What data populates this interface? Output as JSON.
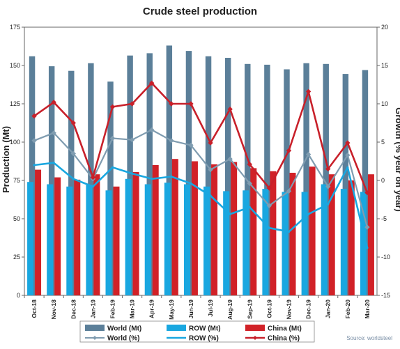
{
  "chart_data": {
    "type": "bar",
    "title": "Crude steel production",
    "ylabel_left": "Production (Mt)",
    "ylabel_right": "Growth (% year on year)",
    "ylim_left": [
      0,
      175
    ],
    "yticks_left": [
      "0",
      "25",
      "50",
      "75",
      "100",
      "125",
      "150",
      "175"
    ],
    "ylim_right": [
      -15,
      20
    ],
    "yticks_right": [
      "-15",
      "-10",
      "-5",
      "0",
      "5",
      "10",
      "15",
      "20"
    ],
    "categories": [
      "Oct-18",
      "Nov-18",
      "Dec-18",
      "Jan-19",
      "Feb-19",
      "Mar-19",
      "Apr-19",
      "May-19",
      "Jun-19",
      "Jul-19",
      "Aug-19",
      "Sep-19",
      "Oct-19",
      "Nov-19",
      "Dec-19",
      "Jan-20",
      "Feb-20",
      "Mar-20"
    ],
    "bar_series": [
      {
        "name": "World (Mt)",
        "color": "#5b7f99",
        "values": [
          156,
          149.5,
          146.5,
          151.5,
          139.5,
          156.5,
          158,
          163,
          159.5,
          156,
          155,
          151,
          150.5,
          147.5,
          151.5,
          151,
          144.5,
          147
        ]
      },
      {
        "name": "ROW (Mt)",
        "color": "#19a7e0",
        "values": [
          74,
          72.5,
          71,
          72,
          68.5,
          76,
          72.5,
          73.5,
          72.5,
          71,
          68,
          68.5,
          69.5,
          67.5,
          67.5,
          72.5,
          69.5,
          67.5
        ]
      },
      {
        "name": "China (Mt)",
        "color": "#d12127",
        "values": [
          82,
          77,
          75.5,
          79,
          71,
          80.5,
          85,
          89,
          87.5,
          85.5,
          87,
          83,
          81,
          80,
          84,
          79,
          75,
          79
        ]
      }
    ],
    "line_series": [
      {
        "name": "World (%)",
        "color": "#7f9cb0",
        "values": [
          5.2,
          6.2,
          3.5,
          0.2,
          5.5,
          5.3,
          6.6,
          5.2,
          4.6,
          1.4,
          2.8,
          -0.4,
          -3.3,
          -1.4,
          3.4,
          -0.8,
          3.3,
          -6.1
        ]
      },
      {
        "name": "ROW (%)",
        "color": "#19a7e0",
        "values": [
          2.0,
          2.3,
          0.2,
          -0.8,
          1.7,
          0.9,
          0.2,
          0.5,
          -0.4,
          -2.0,
          -4.4,
          -3.5,
          -6.2,
          -6.7,
          -4.4,
          -3.1,
          1.7,
          -8.8
        ]
      },
      {
        "name": "China (%)",
        "color": "#c8202a",
        "values": [
          8.4,
          10.2,
          7.5,
          0.4,
          9.6,
          10.0,
          12.7,
          10.0,
          10.0,
          4.9,
          9.3,
          2.1,
          -1.0,
          3.9,
          11.6,
          1.5,
          4.9,
          -1.6
        ]
      }
    ],
    "legend": {
      "placement": "bottom",
      "items": [
        "World (Mt)",
        "ROW (Mt)",
        "China (Mt)",
        "World (%)",
        "ROW (%)",
        "China (%)"
      ]
    },
    "source": "Source: worldsteel",
    "grid": false
  }
}
